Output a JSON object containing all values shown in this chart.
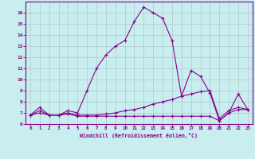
{
  "xlabel": "Windchill (Refroidissement éolien,°C)",
  "background_color": "#c8eef0",
  "line_color": "#880088",
  "grid_color": "#b0c8c8",
  "xlim": [
    -0.5,
    23.5
  ],
  "ylim": [
    6,
    17
  ],
  "yticks": [
    6,
    7,
    8,
    9,
    10,
    11,
    12,
    13,
    14,
    15,
    16
  ],
  "xticks": [
    0,
    1,
    2,
    3,
    4,
    5,
    6,
    7,
    8,
    9,
    10,
    11,
    12,
    13,
    14,
    15,
    16,
    17,
    18,
    19,
    20,
    21,
    22,
    23
  ],
  "line1_x": [
    0,
    1,
    2,
    3,
    4,
    5,
    6,
    7,
    8,
    9,
    10,
    11,
    12,
    13,
    14,
    15,
    16,
    17,
    18,
    19,
    20,
    21,
    22,
    23
  ],
  "line1_y": [
    6.8,
    7.5,
    6.8,
    6.8,
    7.2,
    7.0,
    9.0,
    11.0,
    12.2,
    13.0,
    13.5,
    15.2,
    16.5,
    16.0,
    15.5,
    13.5,
    8.5,
    10.8,
    10.3,
    8.8,
    6.3,
    7.0,
    8.7,
    7.3
  ],
  "line2_x": [
    0,
    1,
    2,
    3,
    4,
    5,
    6,
    7,
    8,
    9,
    10,
    11,
    12,
    13,
    14,
    15,
    16,
    17,
    18,
    19,
    20,
    21,
    22,
    23
  ],
  "line2_y": [
    6.8,
    7.2,
    6.8,
    6.8,
    7.0,
    6.8,
    6.8,
    6.8,
    6.9,
    7.0,
    7.2,
    7.3,
    7.5,
    7.8,
    8.0,
    8.2,
    8.5,
    8.7,
    8.9,
    9.0,
    6.5,
    7.2,
    7.5,
    7.3
  ],
  "line3_x": [
    0,
    1,
    2,
    3,
    4,
    5,
    6,
    7,
    8,
    9,
    10,
    11,
    12,
    13,
    14,
    15,
    16,
    17,
    18,
    19,
    20,
    21,
    22,
    23
  ],
  "line3_y": [
    6.8,
    7.0,
    6.8,
    6.8,
    6.9,
    6.7,
    6.7,
    6.7,
    6.7,
    6.7,
    6.7,
    6.7,
    6.7,
    6.7,
    6.7,
    6.7,
    6.7,
    6.7,
    6.7,
    6.7,
    6.3,
    7.0,
    7.3,
    7.3
  ],
  "marker": "+"
}
